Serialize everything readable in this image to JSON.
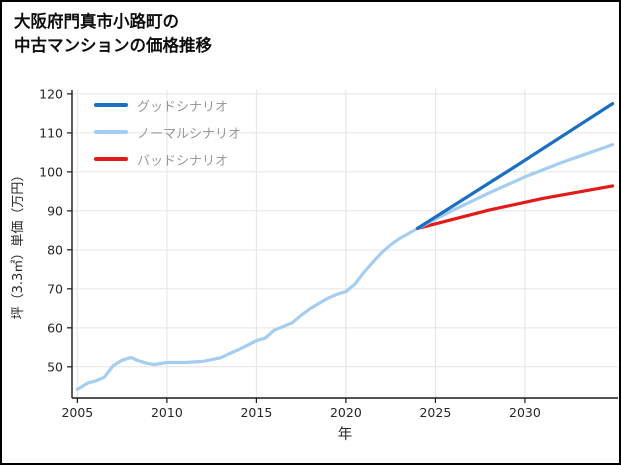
{
  "page": {
    "background": "#ffffff",
    "border_color": "#000000"
  },
  "title": {
    "line1": "大阪府門真市小路町の",
    "line2": "中古マンションの価格推移"
  },
  "chart_data": {
    "type": "line",
    "title": "大阪府門真市小路町の中古マンションの価格推移",
    "xlabel": "年",
    "ylabel": "坪（3.3㎡）単価（万円）",
    "xlim": [
      2004.7,
      2035.2
    ],
    "ylim": [
      42,
      121
    ],
    "xticks": [
      2005,
      2010,
      2015,
      2020,
      2025,
      2030
    ],
    "yticks": [
      50,
      60,
      70,
      80,
      90,
      100,
      110,
      120
    ],
    "grid": true,
    "legend_position": "upper-left",
    "colors": {
      "grid": "#e4e4e4",
      "axis": "#1a1a1a",
      "tick_label": "#262626",
      "legend_label": "#999999"
    },
    "series": [
      {
        "key": "good-scenario",
        "name": "グッドシナリオ",
        "color": "#1a6fc0",
        "in_legend": true,
        "points": [
          [
            2024,
            85.5
          ],
          [
            2029.5,
            101.5
          ],
          [
            2034.9,
            117.5
          ]
        ]
      },
      {
        "key": "normal-scenario",
        "name": "ノーマルシナリオ",
        "color": "#a5cdef",
        "in_legend": true,
        "points": [
          [
            2024,
            85.5
          ],
          [
            2026,
            90.2
          ],
          [
            2028,
            94.6
          ],
          [
            2030,
            98.7
          ],
          [
            2032,
            102.3
          ],
          [
            2034.9,
            107.0
          ]
        ]
      },
      {
        "key": "bad-scenario",
        "name": "バッドシナリオ",
        "color": "#e31a1c",
        "in_legend": true,
        "points": [
          [
            2024,
            85.5
          ],
          [
            2028,
            90.2
          ],
          [
            2031,
            93.2
          ],
          [
            2034.9,
            96.4
          ]
        ]
      },
      {
        "key": "historical",
        "name": "",
        "color": "#a5cdef",
        "in_legend": false,
        "points": [
          [
            2005,
            44.2
          ],
          [
            2005.6,
            45.9
          ],
          [
            2006,
            46.3
          ],
          [
            2006.5,
            47.3
          ],
          [
            2007,
            50.3
          ],
          [
            2007.5,
            51.7
          ],
          [
            2008,
            52.4
          ],
          [
            2008.4,
            51.6
          ],
          [
            2008.8,
            51.0
          ],
          [
            2009.3,
            50.6
          ],
          [
            2010,
            51.1
          ],
          [
            2011,
            51.1
          ],
          [
            2012,
            51.4
          ],
          [
            2013,
            52.3
          ],
          [
            2013.5,
            53.4
          ],
          [
            2014,
            54.4
          ],
          [
            2015,
            56.7
          ],
          [
            2015.5,
            57.4
          ],
          [
            2016,
            59.4
          ],
          [
            2017,
            61.3
          ],
          [
            2017.5,
            63.2
          ],
          [
            2018,
            64.9
          ],
          [
            2018.5,
            66.3
          ],
          [
            2019,
            67.6
          ],
          [
            2019.5,
            68.6
          ],
          [
            2020,
            69.3
          ],
          [
            2020.5,
            71.2
          ],
          [
            2021,
            74.2
          ],
          [
            2021.5,
            76.8
          ],
          [
            2022,
            79.3
          ],
          [
            2022.5,
            81.3
          ],
          [
            2023,
            82.9
          ],
          [
            2023.5,
            84.2
          ],
          [
            2024,
            85.5
          ]
        ]
      }
    ]
  }
}
